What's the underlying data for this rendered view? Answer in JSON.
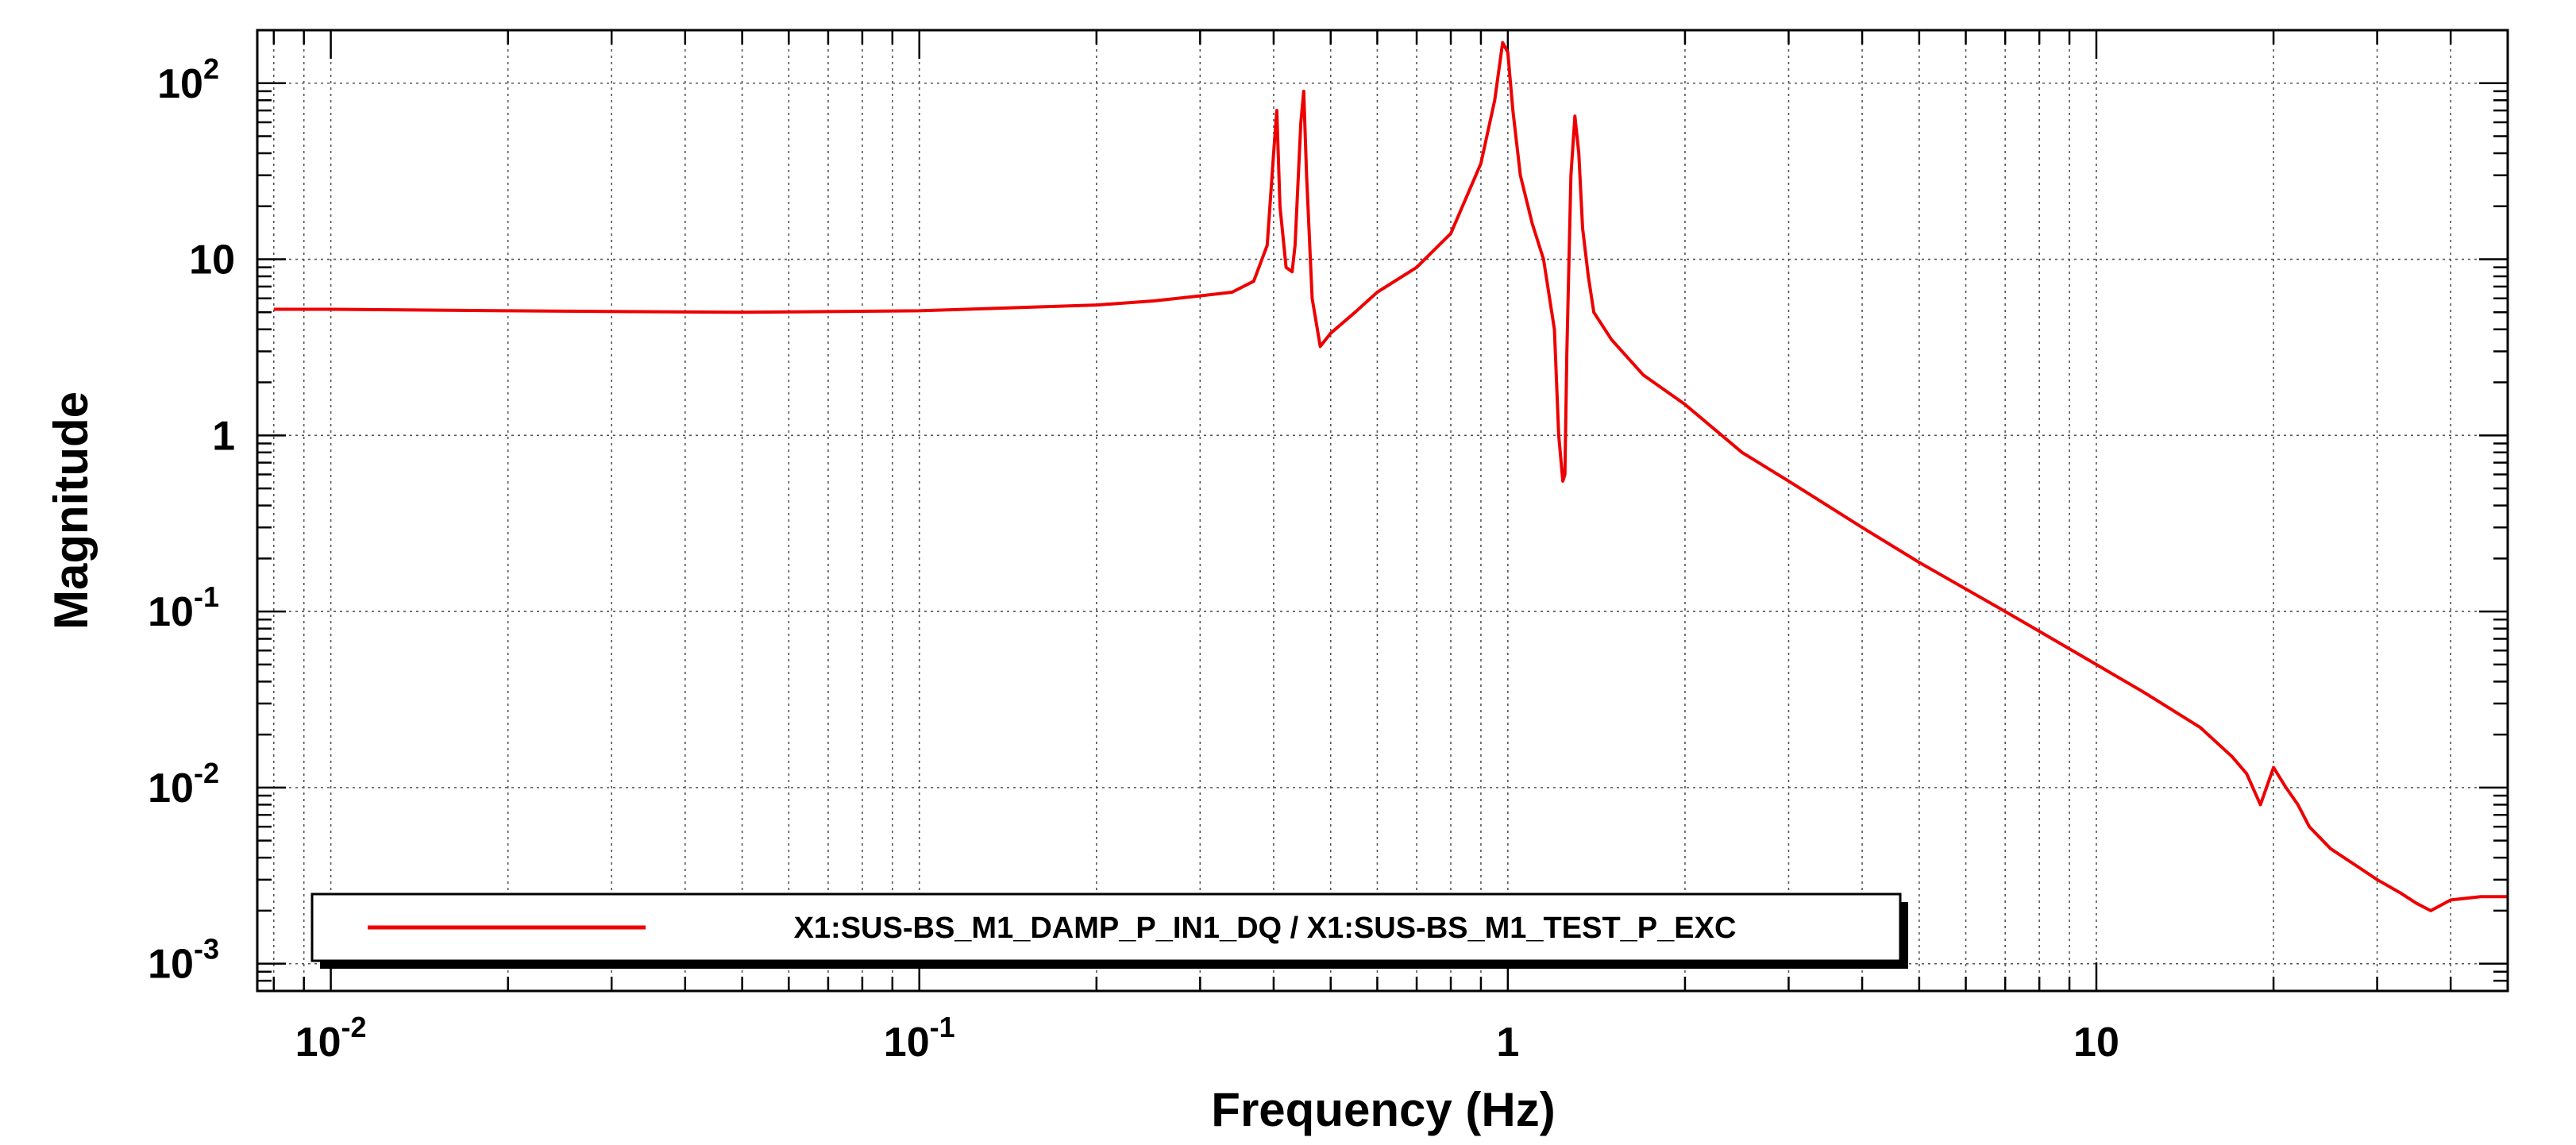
{
  "chart_data": {
    "type": "line",
    "xlabel": "Frequency (Hz)",
    "ylabel": "Magnitude",
    "xscale": "log",
    "yscale": "log",
    "xlim": [
      0.0075,
      50
    ],
    "ylim": [
      0.0007,
      200
    ],
    "grid": true,
    "legend_position": "bottom-left",
    "x_ticks": [
      {
        "value": 0.01,
        "base": "10",
        "exp": "-2"
      },
      {
        "value": 0.1,
        "base": "10",
        "exp": "-1"
      },
      {
        "value": 1,
        "base": "1",
        "exp": ""
      },
      {
        "value": 10,
        "base": "10",
        "exp": ""
      }
    ],
    "y_ticks": [
      {
        "value": 0.001,
        "base": "10",
        "exp": "-3"
      },
      {
        "value": 0.01,
        "base": "10",
        "exp": "-2"
      },
      {
        "value": 0.1,
        "base": "10",
        "exp": "-1"
      },
      {
        "value": 1,
        "base": "1",
        "exp": ""
      },
      {
        "value": 10,
        "base": "10",
        "exp": ""
      },
      {
        "value": 100,
        "base": "10",
        "exp": "2"
      }
    ],
    "series": [
      {
        "name": "X1:SUS-BS_M1_DAMP_P_IN1_DQ / X1:SUS-BS_M1_TEST_P_EXC",
        "color": "#ee0000",
        "x": [
          0.008,
          0.01,
          0.02,
          0.05,
          0.1,
          0.2,
          0.25,
          0.3,
          0.34,
          0.37,
          0.39,
          0.4,
          0.405,
          0.41,
          0.42,
          0.43,
          0.435,
          0.445,
          0.45,
          0.455,
          0.465,
          0.48,
          0.5,
          0.55,
          0.6,
          0.7,
          0.8,
          0.9,
          0.95,
          0.98,
          1.0,
          1.02,
          1.05,
          1.1,
          1.15,
          1.2,
          1.22,
          1.24,
          1.25,
          1.26,
          1.28,
          1.3,
          1.32,
          1.34,
          1.37,
          1.4,
          1.5,
          1.7,
          2.0,
          2.5,
          3,
          4,
          5,
          7,
          10,
          12,
          15,
          17,
          18,
          19,
          20,
          21,
          22,
          23,
          25,
          28,
          30,
          33,
          35,
          37,
          40,
          45,
          50
        ],
        "y": [
          5.2,
          5.2,
          5.1,
          5.0,
          5.1,
          5.5,
          5.8,
          6.2,
          6.5,
          7.5,
          12,
          40,
          70,
          20,
          9,
          8.5,
          12,
          60,
          90,
          30,
          6,
          3.2,
          3.8,
          5,
          6.5,
          9,
          14,
          35,
          80,
          170,
          150,
          70,
          30,
          16,
          10,
          4,
          1.0,
          0.55,
          0.6,
          3,
          30,
          65,
          40,
          15,
          8,
          5,
          3.5,
          2.2,
          1.5,
          0.8,
          0.55,
          0.3,
          0.19,
          0.1,
          0.05,
          0.035,
          0.022,
          0.015,
          0.012,
          0.008,
          0.013,
          0.01,
          0.008,
          0.006,
          0.0045,
          0.0035,
          0.003,
          0.0025,
          0.0022,
          0.002,
          0.0023,
          0.0024,
          0.0024
        ]
      }
    ]
  }
}
